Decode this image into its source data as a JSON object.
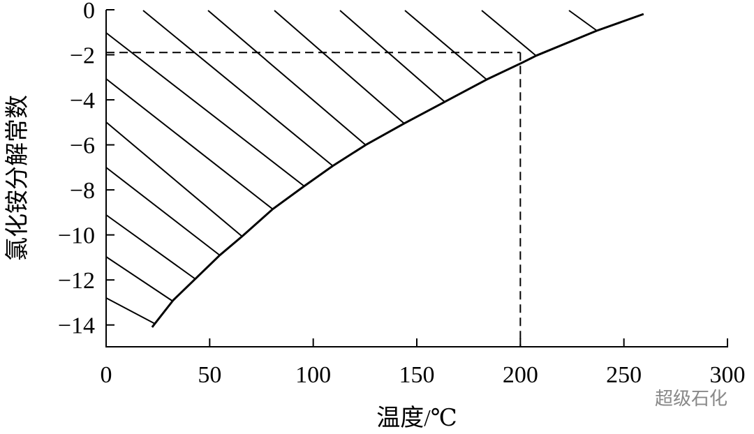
{
  "chart_data": {
    "type": "line",
    "x_label": "温度/℃",
    "y_label": "氯化铵分解常数",
    "watermark": "超级石化",
    "x": [
      22.2,
      32.4,
      43.1,
      54.9,
      65.7,
      80.5,
      95.7,
      109.5,
      125.4,
      143.9,
      163.5,
      183.7,
      200.9,
      207.6,
      236.9,
      259.5
    ],
    "values": [
      -14.1,
      -12.9,
      -11.95,
      -10.9,
      -10.06,
      -8.85,
      -7.83,
      -6.93,
      -6.0,
      -5.05,
      -4.09,
      -3.1,
      -2.35,
      -2.04,
      -0.93,
      -0.19
    ],
    "color": "#000000",
    "guide": {
      "x": 200,
      "y": -1.9
    },
    "xlim": [
      0,
      300
    ],
    "xticks": [
      0,
      50,
      100,
      150,
      200,
      250,
      300
    ],
    "ylim": [
      -15,
      0
    ],
    "yticks": [
      {
        "value": 0,
        "label": "0"
      },
      {
        "value": -2,
        "label": "−2"
      },
      {
        "value": -4,
        "label": "−4"
      },
      {
        "value": -6,
        "label": "−6"
      },
      {
        "value": -8,
        "label": "−8"
      },
      {
        "value": -10,
        "label": "−10"
      },
      {
        "value": -12,
        "label": "−12"
      },
      {
        "value": -14,
        "label": "−14"
      }
    ]
  }
}
